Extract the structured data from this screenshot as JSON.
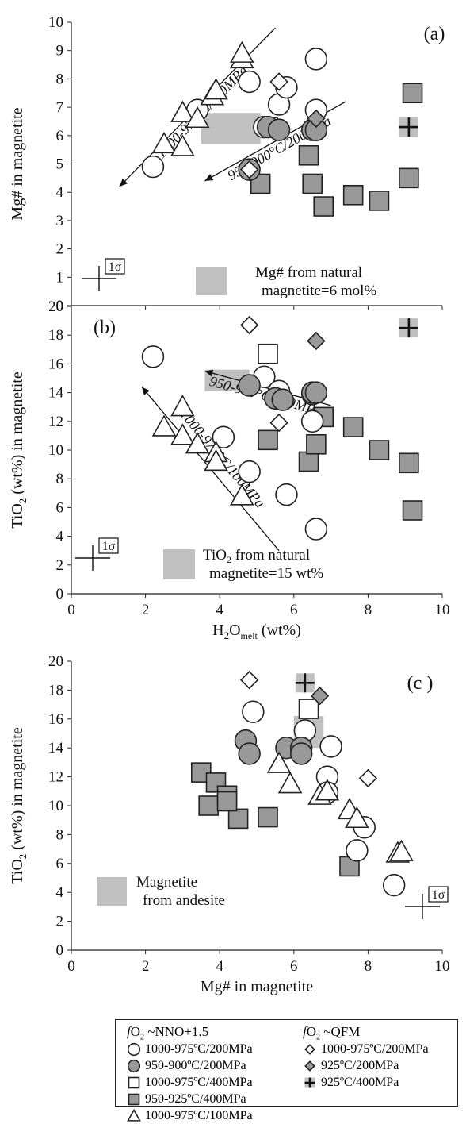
{
  "chart_data": [
    {
      "id": "a",
      "type": "scatter",
      "panel_label": "(a)",
      "ylabel": "Mg# in magnetite",
      "xlim": [
        0,
        10
      ],
      "ylim": [
        0,
        10
      ],
      "yticks": [
        "0",
        "1",
        "2",
        "3",
        "4",
        "5",
        "6",
        "7",
        "8",
        "9",
        "10"
      ],
      "natural_box": {
        "x0": 3.5,
        "x1": 5.1,
        "y0": 5.7,
        "y1": 6.8
      },
      "natural_label_lines": [
        "Mg# from natural",
        "magnetite=6 mol%"
      ],
      "sigma_label": "1σ",
      "arrows": [
        {
          "label": "1000-975°C/100MPa",
          "from": [
            5.5,
            9.8
          ],
          "to": [
            1.3,
            4.2
          ]
        },
        {
          "label": "950-900°C/200MPa",
          "from": [
            7.4,
            7.2
          ],
          "to": [
            3.6,
            4.4
          ]
        }
      ],
      "series": [
        {
          "key": "o200",
          "values": [
            [
              2.2,
              4.9
            ],
            [
              3.4,
              6.9
            ],
            [
              4.8,
              7.9
            ],
            [
              5.2,
              6.3
            ],
            [
              5.6,
              7.1
            ],
            [
              5.8,
              7.7
            ],
            [
              6.6,
              8.7
            ],
            [
              6.6,
              6.9
            ],
            [
              6.6,
              6.2
            ]
          ]
        },
        {
          "key": "g200",
          "values": [
            [
              4.8,
              4.8
            ],
            [
              5.3,
              6.3
            ],
            [
              5.6,
              6.2
            ],
            [
              6.5,
              6.2
            ],
            [
              6.6,
              6.2
            ]
          ]
        },
        {
          "key": "o400",
          "values": [
            [
              5.3,
              6.3
            ]
          ]
        },
        {
          "key": "g400",
          "values": [
            [
              5.1,
              4.3
            ],
            [
              6.4,
              5.3
            ],
            [
              6.5,
              4.3
            ],
            [
              6.8,
              3.5
            ],
            [
              7.6,
              3.9
            ],
            [
              8.3,
              3.7
            ],
            [
              9.1,
              4.5
            ],
            [
              9.2,
              7.5
            ]
          ]
        },
        {
          "key": "t100",
          "values": [
            [
              2.5,
              5.7
            ],
            [
              3.0,
              5.6
            ],
            [
              3.0,
              6.8
            ],
            [
              3.4,
              6.6
            ],
            [
              3.8,
              7.4
            ],
            [
              3.9,
              7.6
            ],
            [
              4.6,
              8.7
            ],
            [
              4.6,
              8.9
            ]
          ]
        },
        {
          "key": "d200",
          "values": [
            [
              4.8,
              4.8
            ],
            [
              5.6,
              7.9
            ]
          ]
        },
        {
          "key": "dg200",
          "values": [
            [
              6.6,
              6.6
            ]
          ]
        },
        {
          "key": "p400",
          "values": [
            [
              9.1,
              6.3
            ]
          ]
        }
      ]
    },
    {
      "id": "b",
      "type": "scatter",
      "panel_label": "(b)",
      "ylabel": "TiO2 (wt%) in magnetite",
      "xlabel": "H2Omelt (wt%)",
      "xlim": [
        0,
        10
      ],
      "ylim": [
        0,
        20
      ],
      "xticks": [
        "0",
        "2",
        "4",
        "6",
        "8",
        "10"
      ],
      "yticks": [
        "0",
        "2",
        "4",
        "6",
        "8",
        "10",
        "12",
        "14",
        "16",
        "18",
        "20"
      ],
      "natural_box": {
        "x0": 3.6,
        "x1": 4.8,
        "y0": 14.1,
        "y1": 15.6
      },
      "natural_label_lines": [
        "TiO2 from natural",
        "magnetite=15 wt%"
      ],
      "sigma_label": "1σ",
      "arrows": [
        {
          "label": "1000-975°C/100MPa",
          "from": [
            5.6,
            3.0
          ],
          "to": [
            1.9,
            14.4
          ]
        },
        {
          "label": "950-900°C/200MPa",
          "from": [
            7.0,
            13.1
          ],
          "to": [
            3.6,
            15.5
          ]
        }
      ],
      "series": [
        {
          "key": "o200",
          "values": [
            [
              2.2,
              16.5
            ],
            [
              4.1,
              10.9
            ],
            [
              4.8,
              8.5
            ],
            [
              5.2,
              15.1
            ],
            [
              5.6,
              14.1
            ],
            [
              5.8,
              6.9
            ],
            [
              6.5,
              12.0
            ],
            [
              6.6,
              4.5
            ],
            [
              6.5,
              13.9
            ]
          ]
        },
        {
          "key": "g200",
          "values": [
            [
              4.8,
              14.5
            ],
            [
              5.5,
              13.6
            ],
            [
              5.7,
              13.5
            ],
            [
              6.5,
              14.0
            ],
            [
              6.6,
              14.0
            ]
          ]
        },
        {
          "key": "o400",
          "values": [
            [
              5.3,
              16.7
            ]
          ]
        },
        {
          "key": "g400",
          "values": [
            [
              5.3,
              10.7
            ],
            [
              6.4,
              9.2
            ],
            [
              6.6,
              10.4
            ],
            [
              6.8,
              12.3
            ],
            [
              7.6,
              11.6
            ],
            [
              8.3,
              10.0
            ],
            [
              9.1,
              9.1
            ],
            [
              9.2,
              5.8
            ]
          ]
        },
        {
          "key": "t100",
          "values": [
            [
              2.5,
              11.6
            ],
            [
              3.0,
              11.0
            ],
            [
              3.0,
              13.0
            ],
            [
              3.4,
              10.4
            ],
            [
              3.9,
              9.8
            ],
            [
              3.9,
              9.2
            ],
            [
              4.6,
              6.8
            ]
          ]
        },
        {
          "key": "d200",
          "values": [
            [
              4.8,
              18.7
            ],
            [
              5.6,
              11.9
            ]
          ]
        },
        {
          "key": "dg200",
          "values": [
            [
              6.6,
              17.6
            ]
          ]
        },
        {
          "key": "p400",
          "values": [
            [
              9.1,
              18.5
            ]
          ]
        }
      ]
    },
    {
      "id": "c",
      "type": "scatter",
      "panel_label": "(c )",
      "ylabel": "TiO2 (wt%) in magnetite",
      "xlabel": "Mg# in magnetite",
      "xlim": [
        0,
        10
      ],
      "ylim": [
        0,
        20
      ],
      "xticks": [
        "0",
        "2",
        "4",
        "6",
        "8",
        "10"
      ],
      "yticks": [
        "0",
        "2",
        "4",
        "6",
        "8",
        "10",
        "12",
        "14",
        "16",
        "18",
        "20"
      ],
      "natural_box": {
        "x0": 6.0,
        "x1": 6.8,
        "y0": 14.0,
        "y1": 16.2
      },
      "natural_label_lines": [
        "Magnetite",
        "from andesite"
      ],
      "sigma_label": "1σ",
      "arrows": [],
      "series": [
        {
          "key": "o200",
          "values": [
            [
              4.9,
              16.5
            ],
            [
              6.3,
              15.2
            ],
            [
              7.0,
              14.1
            ],
            [
              6.9,
              12.0
            ],
            [
              6.9,
              10.9
            ],
            [
              7.9,
              8.5
            ],
            [
              7.7,
              6.9
            ],
            [
              8.7,
              4.5
            ]
          ]
        },
        {
          "key": "g200",
          "values": [
            [
              4.7,
              14.5
            ],
            [
              4.8,
              13.6
            ],
            [
              5.8,
              14.0
            ],
            [
              6.2,
              14.0
            ],
            [
              6.2,
              13.6
            ]
          ]
        },
        {
          "key": "o400",
          "values": [
            [
              6.4,
              16.7
            ]
          ]
        },
        {
          "key": "g400",
          "values": [
            [
              3.5,
              12.3
            ],
            [
              3.9,
              11.6
            ],
            [
              3.7,
              10.0
            ],
            [
              4.2,
              10.7
            ],
            [
              4.5,
              9.1
            ],
            [
              5.3,
              9.2
            ],
            [
              7.5,
              5.8
            ],
            [
              4.2,
              10.3
            ]
          ]
        },
        {
          "key": "t100",
          "values": [
            [
              5.6,
              12.9
            ],
            [
              5.9,
              11.5
            ],
            [
              6.7,
              10.7
            ],
            [
              6.9,
              11.0
            ],
            [
              7.5,
              9.7
            ],
            [
              7.7,
              9.1
            ],
            [
              8.8,
              6.7
            ],
            [
              8.9,
              6.8
            ]
          ]
        },
        {
          "key": "d200",
          "values": [
            [
              4.8,
              18.7
            ],
            [
              8.0,
              11.9
            ]
          ]
        },
        {
          "key": "dg200",
          "values": [
            [
              6.7,
              17.6
            ]
          ]
        },
        {
          "key": "p400",
          "values": [
            [
              6.3,
              18.5
            ]
          ]
        }
      ]
    }
  ],
  "legend": {
    "left_heading": {
      "f": "f",
      "o": "O",
      "sub": "2",
      "rest": " ~NNO+1.5"
    },
    "right_heading": {
      "f": "f",
      "o": "O",
      "sub": "2",
      "rest": " ~QFM"
    },
    "left_items": [
      {
        "key": "o200",
        "label": "1000-975ºC/200MPa"
      },
      {
        "key": "g200",
        "label": "950-900ºC/200MPa"
      },
      {
        "key": "o400",
        "label": "1000-975ºC/400MPa"
      },
      {
        "key": "g400",
        "label": "950-925ºC/400MPa"
      },
      {
        "key": "t100",
        "label": "1000-975ºC/100MPa"
      }
    ],
    "right_items": [
      {
        "key": "d200",
        "label": "1000-975ºC/200MPa"
      },
      {
        "key": "dg200",
        "label": "925ºC/200MPa"
      },
      {
        "key": "p400",
        "label": "925ºC/400MPa"
      }
    ]
  },
  "colors": {
    "axis": "#222222",
    "marker_fill_gray": "#999999",
    "marker_stroke": "#222222",
    "natural_box": "#c0c0c0",
    "background": "#ffffff"
  }
}
